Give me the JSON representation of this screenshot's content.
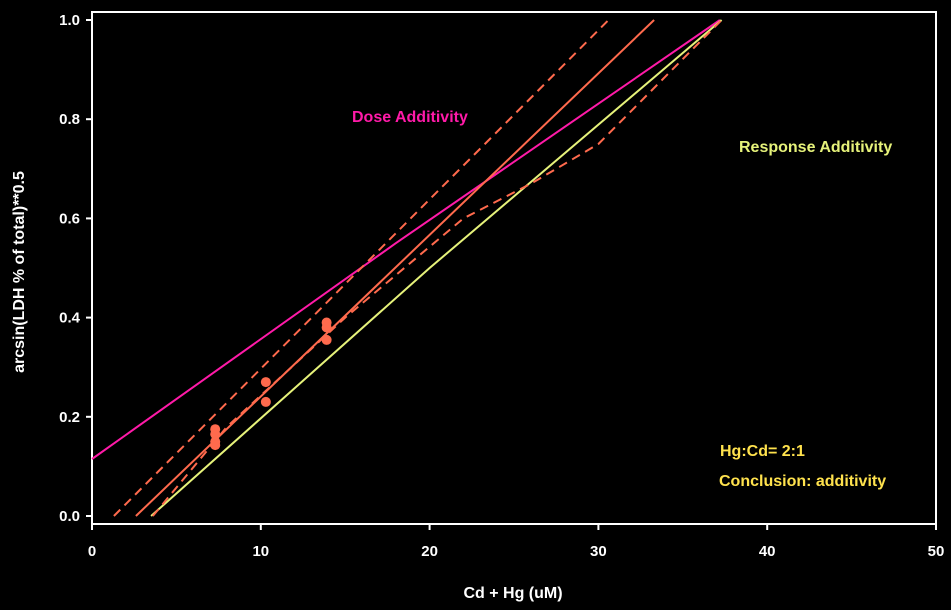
{
  "chart_data": {
    "type": "line",
    "xlabel": "Cd + Hg (uM)",
    "ylabel": "arcsin(LDH % of total)**0.5",
    "xlim": [
      0,
      50
    ],
    "ylim": [
      0,
      1
    ],
    "xticks": [
      0,
      10,
      20,
      30,
      40,
      50
    ],
    "yticks": [
      0.0,
      0.2,
      0.4,
      0.6,
      0.8,
      1.0
    ],
    "xtick_labels": [
      "0",
      "10",
      "20",
      "30",
      "40",
      "50"
    ],
    "ytick_labels": [
      "0.0",
      "0.2",
      "0.4",
      "0.6",
      "0.8",
      "1.0"
    ],
    "grid": false,
    "colors": {
      "background": "#000000",
      "axes": "#ffffff",
      "dose_additivity": "#ff1aa8",
      "response_additivity": "#e6f27a",
      "observed": "#ff6a4d",
      "conclusion_text": "#ffe24d"
    },
    "series": [
      {
        "name": "Dose Additivity",
        "style": "solid",
        "color": "#ff1aa8",
        "x": [
          0,
          18,
          37.2
        ],
        "y": [
          0.115,
          0.55,
          1.0
        ]
      },
      {
        "name": "Response Additivity",
        "style": "solid",
        "color": "#e6f27a",
        "x": [
          3.5,
          20,
          37.3
        ],
        "y": [
          0.0,
          0.5,
          1.0
        ]
      },
      {
        "name": "Fitted regression",
        "style": "solid",
        "color": "#ff6a4d",
        "x": [
          2.6,
          33.3
        ],
        "y": [
          0.0,
          1.0
        ]
      },
      {
        "name": "Upper confidence band",
        "style": "dashed",
        "color": "#ff6a4d",
        "x": [
          1.3,
          30.6
        ],
        "y": [
          0.0,
          1.0
        ]
      },
      {
        "name": "Lower confidence band",
        "style": "dashed",
        "color": "#ff6a4d",
        "x": [
          3.6,
          8,
          15,
          22,
          26,
          30,
          37.3
        ],
        "y": [
          0.0,
          0.18,
          0.4,
          0.6,
          0.67,
          0.75,
          1.0
        ]
      }
    ],
    "points": {
      "name": "Observed",
      "color": "#ff6a4d",
      "x": [
        7.3,
        7.3,
        7.3,
        7.3,
        10.3,
        10.3,
        13.9,
        13.9,
        13.9
      ],
      "y": [
        0.175,
        0.165,
        0.15,
        0.143,
        0.27,
        0.23,
        0.39,
        0.38,
        0.355
      ]
    },
    "annotations": [
      {
        "id": "dose",
        "text": "Dose Additivity",
        "color": "#ff1aa8"
      },
      {
        "id": "response",
        "text": "Response Additivity",
        "color": "#e6f27a"
      },
      {
        "id": "ratio",
        "text": "Hg:Cd=  2:1",
        "color": "#ffe24d"
      },
      {
        "id": "conclusion",
        "text": "Conclusion: additivity",
        "color": "#ffe24d"
      }
    ]
  }
}
